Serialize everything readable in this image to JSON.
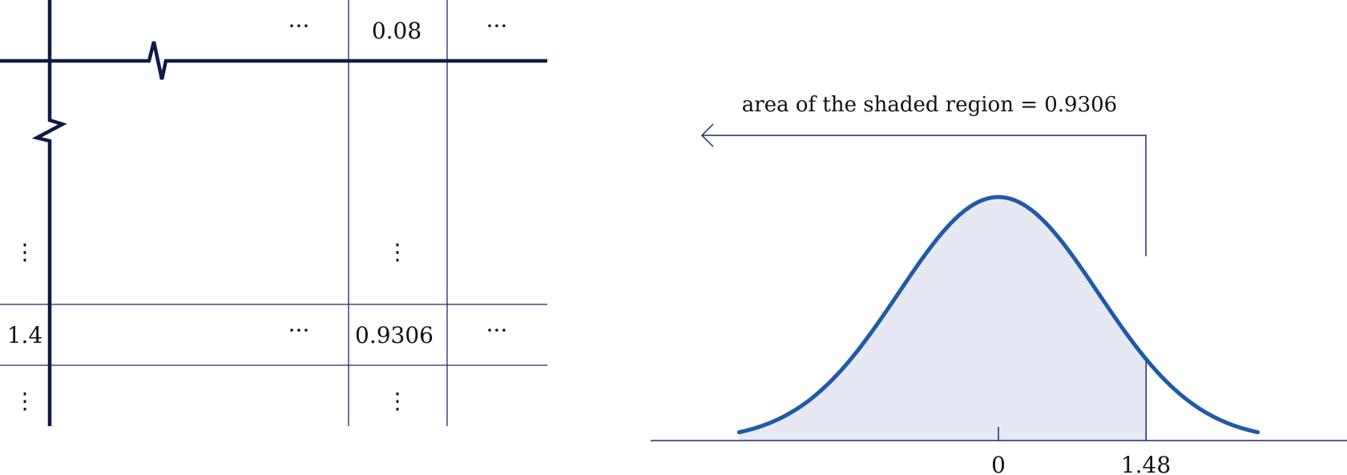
{
  "table": {
    "col_header": "0.08",
    "row_label": "1.4",
    "cell_value": "0.9306",
    "h_ellipsis": "···",
    "v_ellipsis": "⋮"
  },
  "distribution": {
    "caption": "area of the shaded region = 0.9306",
    "mean_label": "0",
    "z_label": "1.48",
    "z_value": 1.48,
    "shaded_area": 0.9306,
    "x_range": [
      -2.6,
      2.6
    ],
    "colors": {
      "curve": "#1f5aa6",
      "fill": "#e6e8f3",
      "line": "#1f2a66",
      "table": "#0f1a45"
    }
  }
}
